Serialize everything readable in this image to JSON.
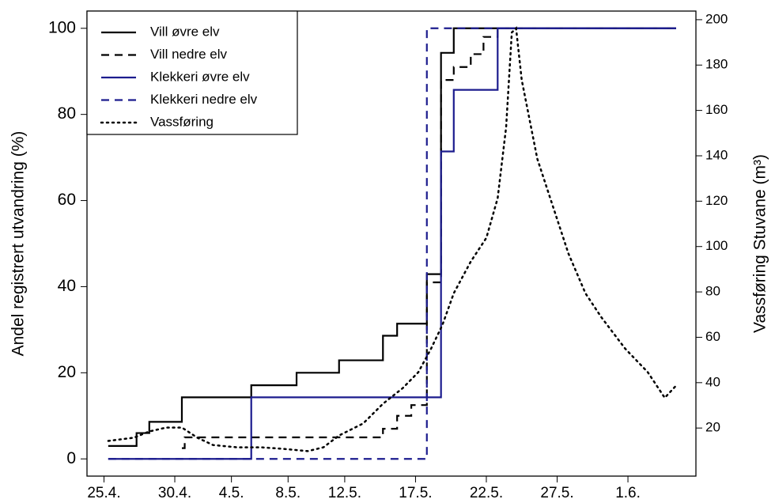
{
  "chart_data": {
    "type": "step",
    "y_label": "Andel registrert utvandring (%)",
    "y2_label": "Vassføring Stuvane (m³)",
    "xlim": [
      113.8,
      156.8
    ],
    "xticks": [
      {
        "value": 115,
        "label": "25.4."
      },
      {
        "value": 120,
        "label": "30.4."
      },
      {
        "value": 124,
        "label": "4.5."
      },
      {
        "value": 128,
        "label": "8.5."
      },
      {
        "value": 132,
        "label": "12.5."
      },
      {
        "value": 137,
        "label": "17.5."
      },
      {
        "value": 142,
        "label": "22.5."
      },
      {
        "value": 147,
        "label": "27.5."
      },
      {
        "value": 152,
        "label": "1.6."
      }
    ],
    "ylim": [
      -4,
      104
    ],
    "yticks": [
      0,
      20,
      40,
      60,
      80,
      100
    ],
    "y2lim": [
      -1.2,
      203.8
    ],
    "y2ticks": [
      20,
      40,
      60,
      80,
      100,
      120,
      140,
      160,
      180,
      200
    ],
    "legend": "top-left",
    "series": [
      {
        "name": "Vill øvre elv",
        "color": "#000000",
        "dash": "solid",
        "x": [
          115.3,
          117.3,
          118.2,
          120.5,
          125.4,
          128.6,
          131.6,
          134.7,
          135.7,
          137.8,
          138.8,
          139.7,
          155.4
        ],
        "values": [
          3,
          6,
          8.6,
          14.3,
          17.1,
          20,
          22.9,
          28.6,
          31.4,
          42.9,
          94.3,
          100,
          100
        ]
      },
      {
        "name": "Vill nedre elv",
        "color": "#000000",
        "dash": "dashed",
        "x": [
          120.5,
          120.7,
          134.7,
          135.7,
          136.7,
          137.8,
          138.8,
          139.7,
          140.9,
          141.8,
          142.8,
          155.4
        ],
        "values": [
          2.5,
          5,
          7,
          10,
          12.5,
          41,
          88,
          91,
          94,
          98,
          100,
          100
        ]
      },
      {
        "name": "Klekkeri øvre elv",
        "color": "#1c1c8e",
        "dash": "solid",
        "x": [
          115.3,
          125.4,
          138.8,
          139.7,
          142.8,
          155.4
        ],
        "values": [
          0,
          14.3,
          71.4,
          85.7,
          100,
          100
        ]
      },
      {
        "name": "Klekkeri nedre elv",
        "color": "#1c1c8e",
        "dash": "dashed",
        "x": [
          115.3,
          137.8,
          155.4
        ],
        "values": [
          0,
          100,
          100
        ]
      },
      {
        "name": "Vassføring",
        "color": "#000000",
        "dash": "dotted",
        "axis": "y2",
        "line": "smooth",
        "x": [
          115.3,
          117.1,
          118.2,
          119.4,
          120.5,
          121.6,
          122.7,
          124.4,
          126.1,
          127.7,
          129.4,
          130.5,
          131.6,
          133.3,
          134.7,
          136.1,
          137.2,
          138.1,
          138.9,
          139.7,
          140.9,
          142,
          142.8,
          143.4,
          143.8,
          144.1,
          144.5,
          145.6,
          146.7,
          147.8,
          149,
          150.1,
          151.8,
          153.4,
          154.6,
          155.4
        ],
        "values": [
          14.3,
          15.7,
          18.5,
          20.2,
          20.2,
          15.7,
          12.5,
          11.5,
          11.5,
          10.8,
          9.8,
          11.5,
          16.7,
          22,
          30.7,
          37.6,
          44.6,
          55,
          65.5,
          79.4,
          93.4,
          103.8,
          121.3,
          152.6,
          194.4,
          196.2,
          173.5,
          138.7,
          117.8,
          96.9,
          79.4,
          69,
          55,
          44.6,
          33.3,
          38.7
        ]
      }
    ]
  }
}
